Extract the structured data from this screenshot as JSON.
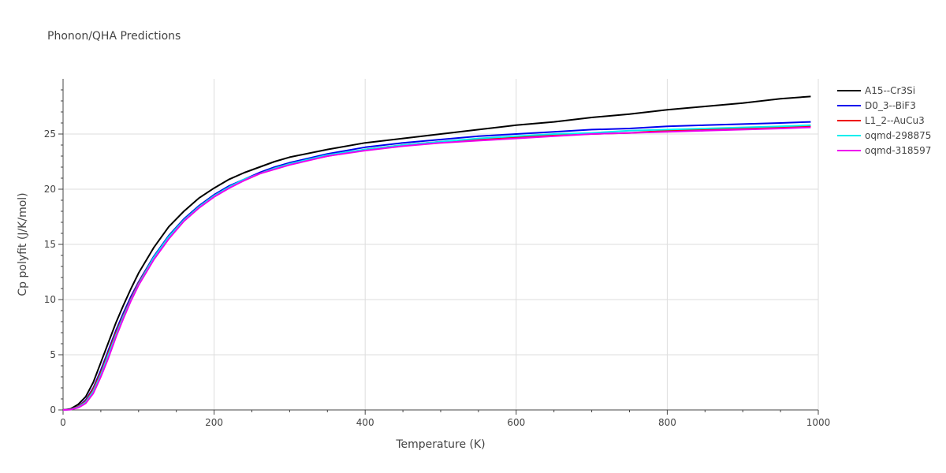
{
  "chart_data": {
    "type": "line",
    "title": "Phonon/QHA Predictions",
    "xlabel": "Temperature (K)",
    "ylabel": "Cp polyfit (J/K/mol)",
    "xlim": [
      0,
      1000
    ],
    "ylim": [
      0,
      30
    ],
    "xticks": [
      0,
      200,
      400,
      600,
      800,
      1000
    ],
    "yticks": [
      0,
      5,
      10,
      15,
      20,
      25
    ],
    "grid": true,
    "legend_position": "top-right",
    "x": [
      0,
      10,
      20,
      30,
      40,
      50,
      60,
      70,
      80,
      90,
      100,
      120,
      140,
      160,
      180,
      200,
      220,
      240,
      260,
      280,
      300,
      350,
      400,
      450,
      500,
      550,
      600,
      650,
      700,
      750,
      800,
      850,
      900,
      950,
      990
    ],
    "series": [
      {
        "name": "A15--Cr3Si",
        "color": "#000000",
        "values": [
          0,
          0.1,
          0.5,
          1.2,
          2.5,
          4.3,
          6.1,
          7.9,
          9.5,
          11.0,
          12.4,
          14.7,
          16.6,
          18.0,
          19.2,
          20.1,
          20.9,
          21.5,
          22.0,
          22.5,
          22.9,
          23.6,
          24.2,
          24.6,
          25.0,
          25.4,
          25.8,
          26.1,
          26.5,
          26.8,
          27.2,
          27.5,
          27.8,
          28.2,
          28.4
        ]
      },
      {
        "name": "D0_3--BiF3",
        "color": "#0000ee",
        "values": [
          0,
          0.05,
          0.3,
          0.9,
          2.0,
          3.6,
          5.4,
          7.2,
          8.8,
          10.3,
          11.6,
          13.9,
          15.8,
          17.3,
          18.5,
          19.5,
          20.3,
          20.9,
          21.5,
          22.0,
          22.4,
          23.2,
          23.8,
          24.2,
          24.5,
          24.8,
          25.0,
          25.2,
          25.4,
          25.5,
          25.7,
          25.8,
          25.9,
          26.0,
          26.1
        ]
      },
      {
        "name": "L1_2--AuCu3",
        "color": "#ee0000",
        "values": [
          0,
          0.05,
          0.3,
          0.8,
          1.9,
          3.4,
          5.2,
          7.0,
          8.6,
          10.1,
          11.5,
          13.8,
          15.7,
          17.2,
          18.4,
          19.4,
          20.2,
          20.8,
          21.4,
          21.9,
          22.3,
          23.0,
          23.6,
          24.0,
          24.3,
          24.5,
          24.7,
          24.9,
          25.0,
          25.1,
          25.3,
          25.4,
          25.5,
          25.6,
          25.7
        ]
      },
      {
        "name": "oqmd-298875",
        "color": "#00eeee",
        "values": [
          0,
          0.04,
          0.25,
          0.7,
          1.7,
          3.2,
          5.0,
          6.8,
          8.5,
          10.0,
          11.4,
          13.8,
          15.7,
          17.2,
          18.4,
          19.4,
          20.2,
          20.9,
          21.4,
          21.9,
          22.3,
          23.1,
          23.6,
          24.0,
          24.3,
          24.6,
          24.8,
          25.0,
          25.1,
          25.3,
          25.4,
          25.5,
          25.6,
          25.7,
          25.8
        ]
      },
      {
        "name": "oqmd-318597",
        "color": "#ee00ee",
        "values": [
          0,
          0.03,
          0.2,
          0.6,
          1.5,
          3.0,
          4.7,
          6.6,
          8.3,
          9.9,
          11.3,
          13.6,
          15.5,
          17.1,
          18.3,
          19.3,
          20.1,
          20.8,
          21.4,
          21.8,
          22.2,
          23.0,
          23.5,
          23.9,
          24.2,
          24.4,
          24.6,
          24.8,
          25.0,
          25.1,
          25.2,
          25.3,
          25.4,
          25.5,
          25.6
        ]
      }
    ]
  }
}
